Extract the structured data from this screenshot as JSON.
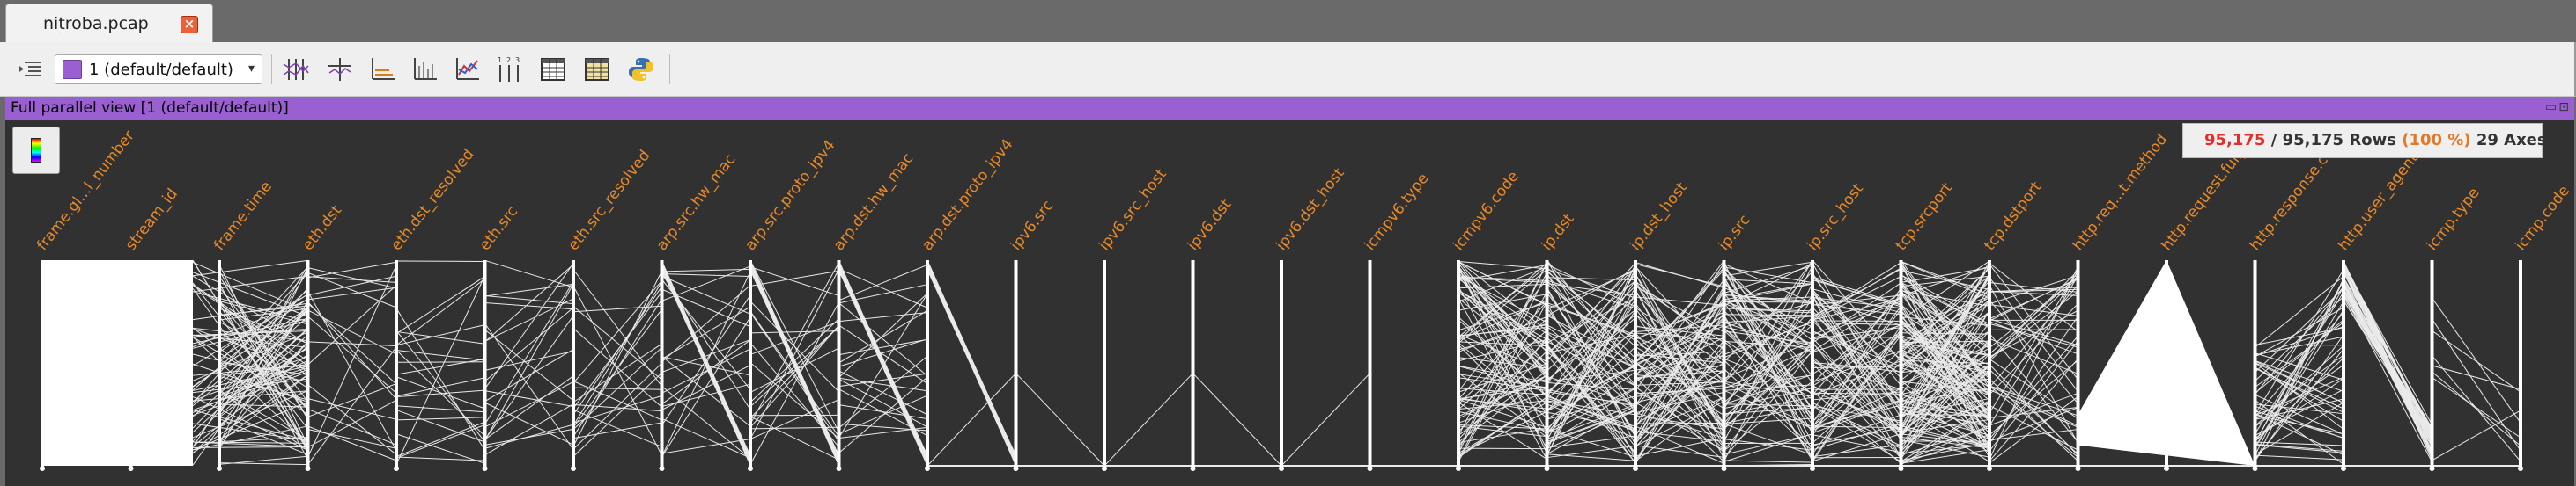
{
  "tab": {
    "title": "nitroba.pcap",
    "close_label": "×"
  },
  "toolbar": {
    "layer_combo": "1 (default/default)",
    "combo_arrow": "▾",
    "icons": [
      "list-indent-icon",
      "parallel-view-icon",
      "zoom-view-icon",
      "scatter-view-icon",
      "hitcount-view-icon",
      "line-chart-icon",
      "axes-numbered-icon",
      "listing-table-icon",
      "listing-table-alt-icon",
      "python-icon"
    ]
  },
  "view": {
    "title": "Full parallel view [1 (default/default)]",
    "title_buttons": "▭⊡",
    "rows_selected": "95,175",
    "rows_total": "95,175",
    "rows_percent": "(100 %)",
    "axes_count": "29 Axes",
    "rows_word": "Rows",
    "slash": "/",
    "axes": [
      "frame.gl...l_number",
      "stream_id",
      "frame.time",
      "eth.dst",
      "eth.dst_resolved",
      "eth.src",
      "eth.src_resolved",
      "arp.src.hw_mac",
      "arp.src.proto_ipv4",
      "arp.dst.hw_mac",
      "arp.dst.proto_ipv4",
      "ipv6.src",
      "ipv6.src_host",
      "ipv6.dst",
      "ipv6.dst_host",
      "icmpv6.type",
      "icmpv6.code",
      "ip.dst",
      "ip.dst_host",
      "ip.src",
      "ip.src_host",
      "tcp.srcport",
      "tcp.dstport",
      "http.req...t.method",
      "http.request.full_...",
      "http.response.code",
      "http.user_agent",
      "icmp.type",
      "icmp.code"
    ],
    "axis_color": "#e8892a",
    "line_color": "#ffffff"
  }
}
